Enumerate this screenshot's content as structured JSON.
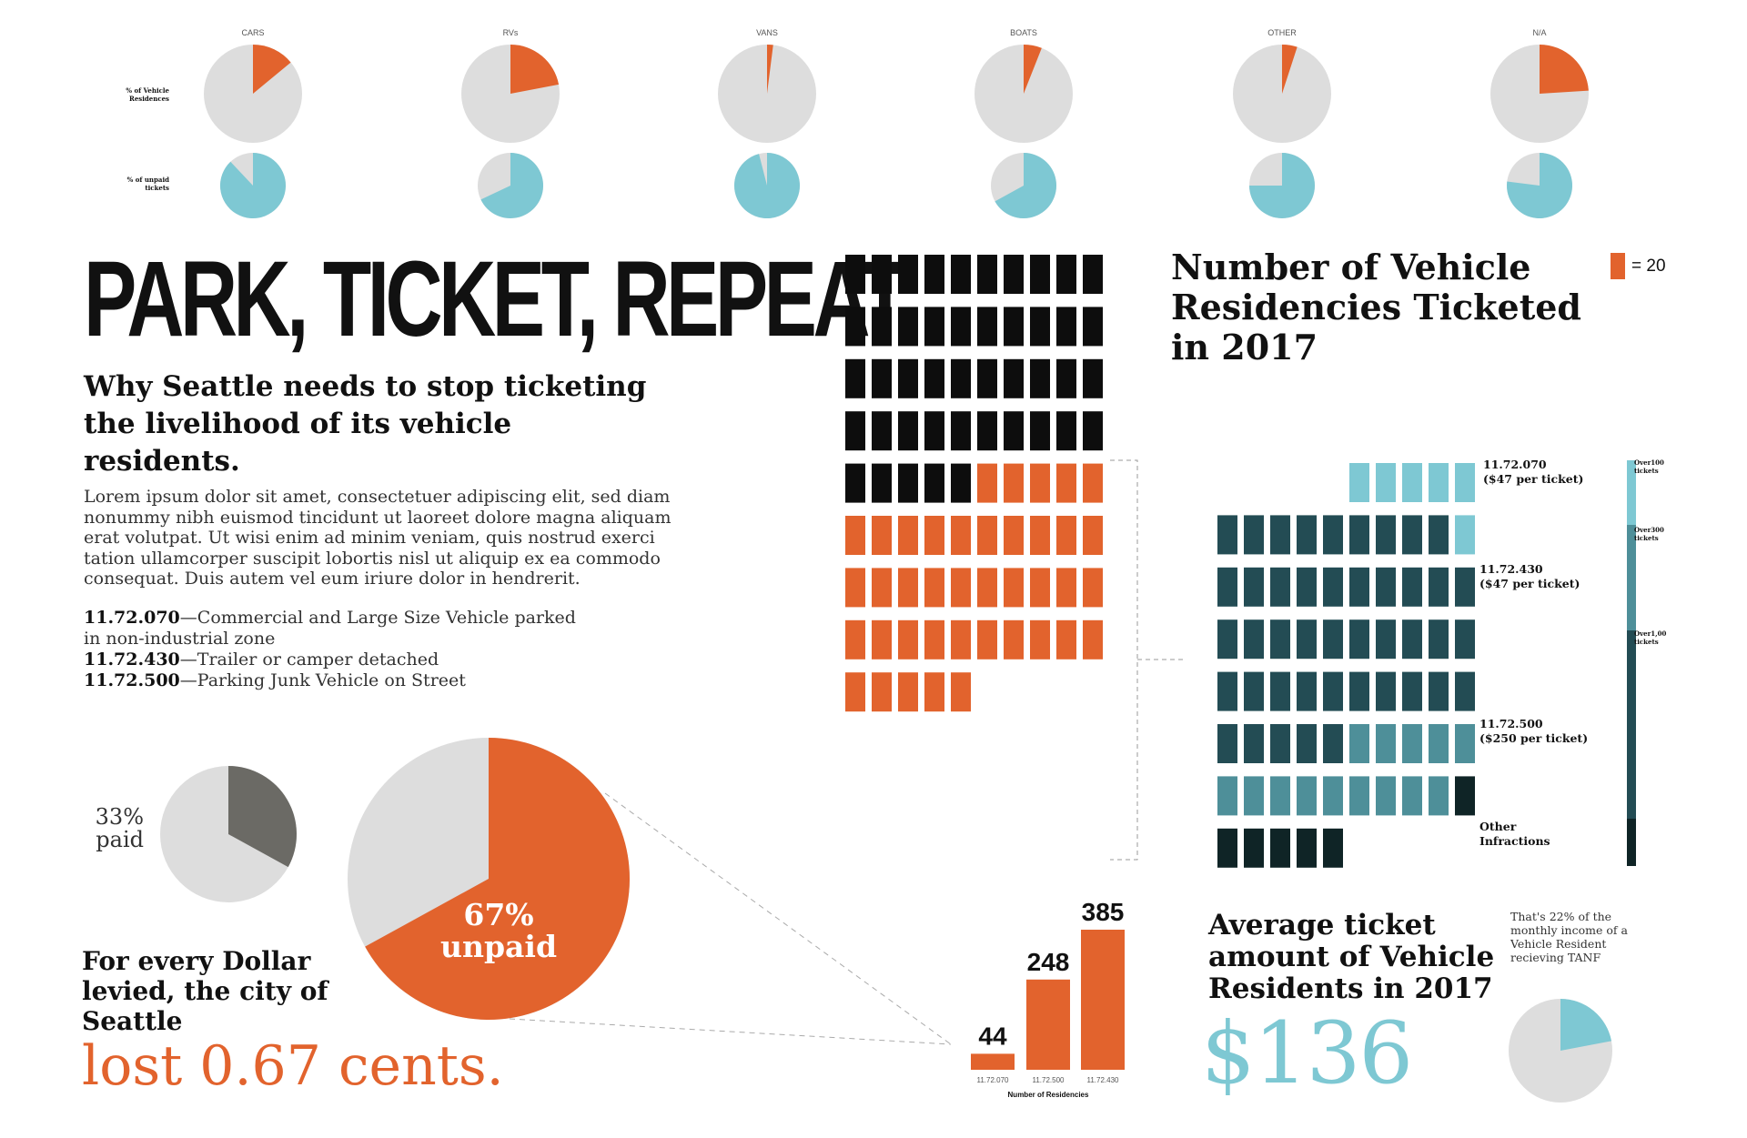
{
  "colors": {
    "orange": "#e2632d",
    "light_gray": "#dddddd",
    "dark_gray": "#6b6a65",
    "teal": "#7ec8d3",
    "black": "#0d0d0d",
    "dark_teal": "#234c54",
    "mid_teal": "#4e8f99",
    "darkest_teal": "#0f2426"
  },
  "headline": "PARK, TICKET, REPEAT.",
  "subheadline": "Why Seattle needs to stop ticketing the livelihood of its vehicle residents.",
  "body": "Lorem ipsum dolor sit amet, consectetuer adipiscing elit, sed diam nonummy nibh euismod tincidunt ut laoreet dolore magna aliquam erat volutpat. Ut wisi enim ad minim veniam, quis nostrud exerci tation ullamcorper suscipit lobortis nisl ut aliquip ex ea commodo consequat. Duis autem vel eum iriure dolor in hendrerit.",
  "codes": [
    {
      "code": "11.72.070",
      "desc": "—Commercial and Large Size Vehicle parked in non-industrial zone"
    },
    {
      "code": "11.72.430",
      "desc": "—Trailer or camper detached"
    },
    {
      "code": "11.72.500",
      "desc": "—Parking Junk Vehicle on Street"
    }
  ],
  "paid_label": "33% paid",
  "unpaid_value": "67%",
  "unpaid_word": "unpaid",
  "dollar_text": "For every Dollar levied, the city of Seattle",
  "lost_text": "lost 0.67 cents.",
  "waffle_title": "Number of Vehicle Residencies Ticketed in 2017",
  "legend_text": "= 20",
  "avg_title": "Average ticket amount of Vehicle Residents in 2017",
  "avg_amount": "$136",
  "tanf_note": "That's 22% of the monthly income of a Vehicle Resident recieving TANF",
  "chart_data": [
    {
      "type": "pie",
      "title": "",
      "row_labels": [
        "% of Vehicle Residences",
        "% of unpaid tickets"
      ],
      "categories": [
        "CARS",
        "RVs",
        "VANS",
        "BOATS",
        "OTHER",
        "N/A"
      ],
      "series": [
        {
          "name": "% of Vehicle Residences",
          "values": [
            0.14,
            0.22,
            0.02,
            0.06,
            0.05,
            0.24
          ]
        },
        {
          "name": "% of unpaid tickets",
          "values": [
            0.88,
            0.68,
            0.96,
            0.67,
            0.75,
            0.77
          ]
        }
      ]
    },
    {
      "type": "pie",
      "title": "",
      "slices": [
        {
          "label": "paid",
          "value": 0.33
        },
        {
          "label": "unpaid",
          "value": 0.67
        }
      ]
    },
    {
      "type": "pie",
      "title": "",
      "slices": [
        {
          "label": "unpaid",
          "value": 0.67
        },
        {
          "label": "paid",
          "value": 0.33
        }
      ]
    },
    {
      "type": "waffle",
      "title": "Number of Vehicle Residencies Ticketed in 2017",
      "unit_value": 20,
      "columns": 10,
      "groups": [
        {
          "color": "black",
          "units": 45
        },
        {
          "color": "orange",
          "units": 40
        }
      ]
    },
    {
      "type": "waffle",
      "title": "",
      "columns": 10,
      "rows": [
        {
          "units": [
            "blank",
            "blank",
            "blank",
            "blank",
            "blank",
            "light",
            "light",
            "light",
            "light",
            "light"
          ]
        },
        {
          "units": [
            "dark",
            "dark",
            "dark",
            "dark",
            "dark",
            "dark",
            "dark",
            "dark",
            "dark",
            "light"
          ]
        },
        {
          "units": [
            "dark",
            "dark",
            "dark",
            "dark",
            "dark",
            "dark",
            "dark",
            "dark",
            "dark",
            "dark"
          ]
        },
        {
          "units": [
            "dark",
            "dark",
            "dark",
            "dark",
            "dark",
            "dark",
            "dark",
            "dark",
            "dark",
            "dark"
          ]
        },
        {
          "units": [
            "dark",
            "dark",
            "dark",
            "dark",
            "dark",
            "dark",
            "dark",
            "dark",
            "dark",
            "dark"
          ]
        },
        {
          "units": [
            "dark",
            "dark",
            "dark",
            "dark",
            "dark",
            "mid",
            "mid",
            "mid",
            "mid",
            "mid"
          ]
        },
        {
          "units": [
            "mid",
            "mid",
            "mid",
            "mid",
            "mid",
            "mid",
            "mid",
            "mid",
            "mid",
            "darkest"
          ]
        },
        {
          "units": [
            "darkest",
            "darkest",
            "darkest",
            "darkest",
            "darkest"
          ]
        }
      ],
      "category_labels": [
        {
          "code": "11.72.070",
          "price": "($47 per ticket)"
        },
        {
          "code": "11.72.430",
          "price": "($47 per ticket)"
        },
        {
          "code": "11.72.500",
          "price": "($250 per ticket)"
        },
        {
          "code": "Other",
          "price": "Infractions"
        }
      ],
      "scale_labels": [
        "Over100 tickets",
        "Over300 tickets",
        "Over1,00 tickets"
      ]
    },
    {
      "type": "bar",
      "title": "",
      "xlabel": "Number of Residencies",
      "categories": [
        "11.72.070",
        "11.72.500",
        "11.72.430"
      ],
      "values": [
        44,
        248,
        385
      ]
    },
    {
      "type": "pie",
      "title": "",
      "slices": [
        {
          "label": "TANF share",
          "value": 0.22
        },
        {
          "label": "rest",
          "value": 0.78
        }
      ]
    }
  ]
}
